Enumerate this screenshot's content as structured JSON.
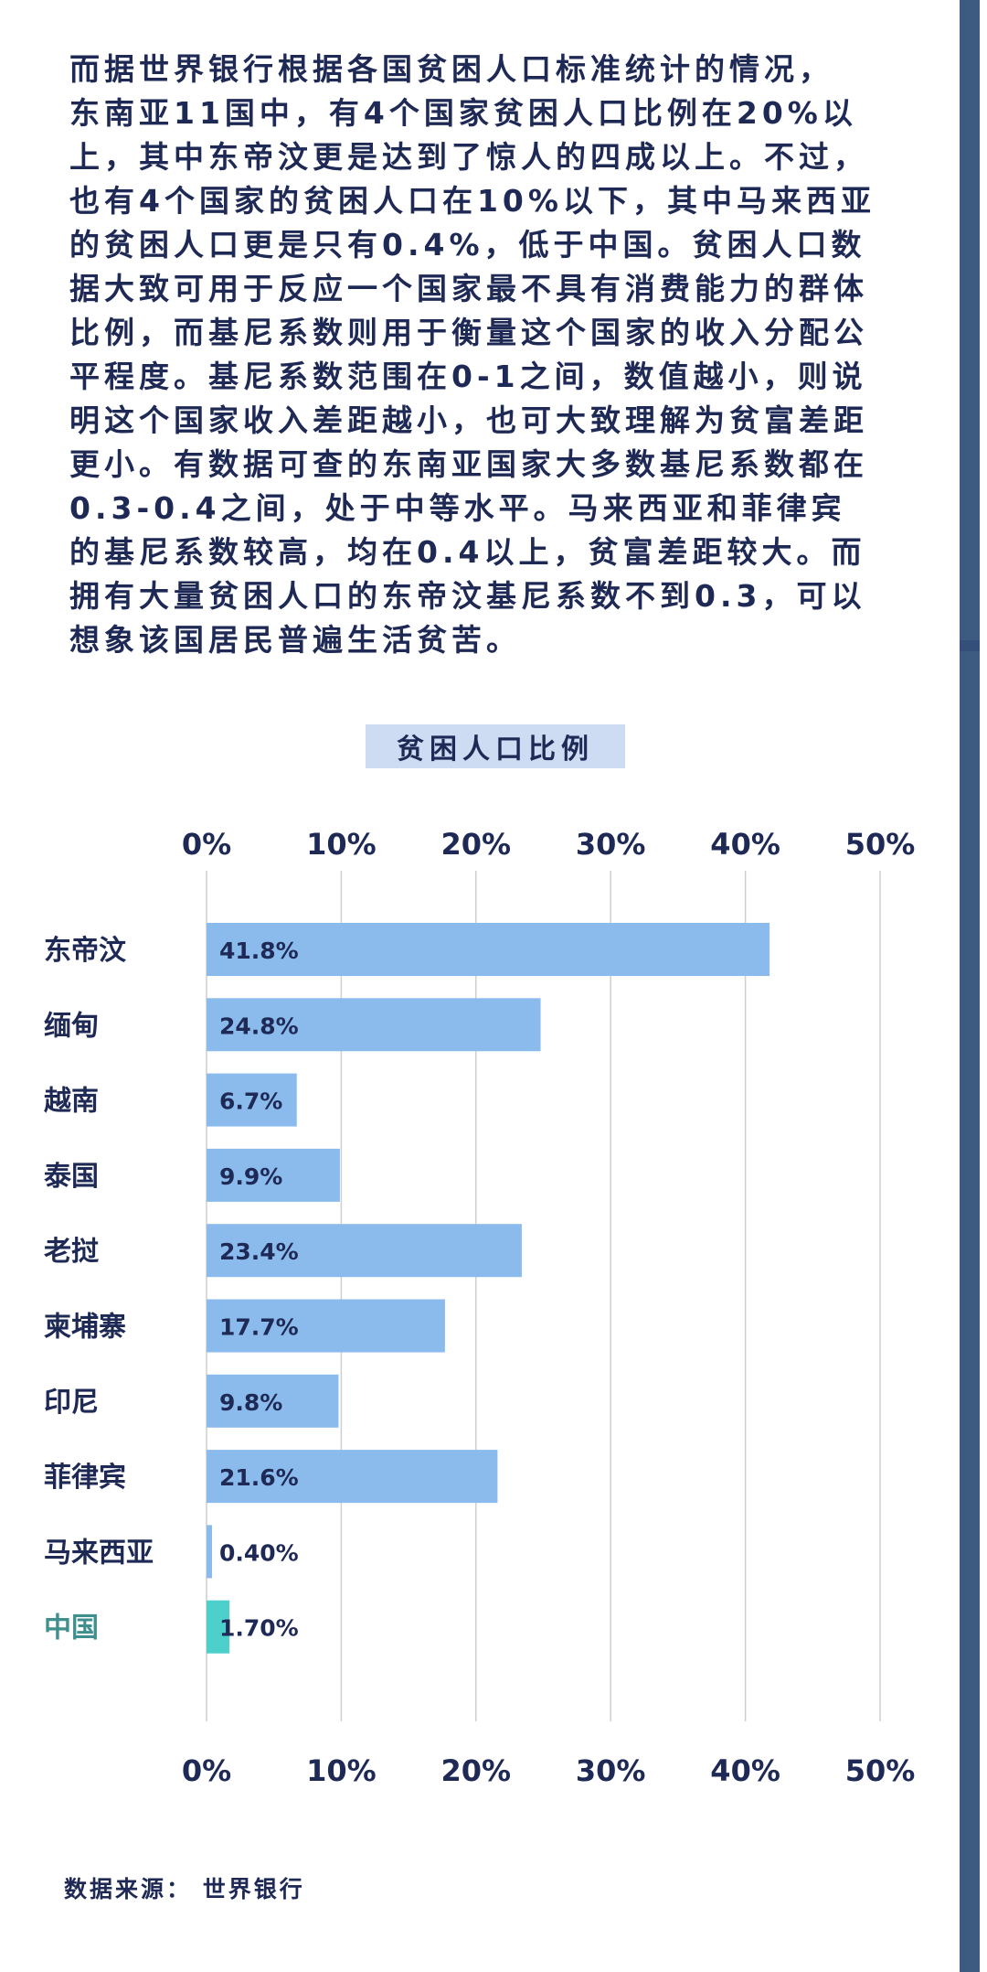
{
  "paragraph_lines": [
    "而据世界银行根据各国贫困人口标准统计的情况，",
    "东南亚11国中，有4个国家贫困人口比例在20%以",
    "上，其中东帝汶更是达到了惊人的四成以上。不过，",
    "也有4个国家的贫困人口在10%以下，其中马来西亚",
    "的贫困人口更是只有0.4%，低于中国。贫困人口数",
    "据大致可用于反应一个国家最不具有消费能力的群体",
    "比例，而基尼系数则用于衡量这个国家的收入分配公",
    "平程度。基尼系数范围在0-1之间，数值越小，则说",
    "明这个国家收入差距越小，也可大致理解为贫富差距",
    "更小。有数据可查的东南亚国家大多数基尼系数都在",
    "0.3-0.4之间，处于中等水平。马来西亚和菲律宾",
    "的基尼系数较高，均在0.4以上，贫富差距较大。而",
    "拥有大量贫困人口的东帝汶基尼系数不到0.3，可以",
    "想象该国居民普遍生活贫苦。"
  ],
  "source_text": "数据来源： 世界银行",
  "colors": {
    "bar": "#8bbbec",
    "highlight_bar": "#4dcfcc",
    "highlight_label": "#3e8f8d",
    "text": "#1e2a55",
    "grid": "#cfcfcf"
  },
  "chart_data": {
    "type": "bar",
    "orientation": "horizontal",
    "title": "贫困人口比例",
    "categories": [
      "东帝汶",
      "缅甸",
      "越南",
      "泰国",
      "老挝",
      "柬埔寨",
      "印尼",
      "菲律宾",
      "马来西亚",
      "中国"
    ],
    "values": [
      41.8,
      24.8,
      6.7,
      9.9,
      23.4,
      17.7,
      9.8,
      21.6,
      0.4,
      1.7
    ],
    "value_labels": [
      "41.8%",
      "24.8%",
      "6.7%",
      "9.9%",
      "23.4%",
      "17.7%",
      "9.8%",
      "21.6%",
      "0.40%",
      "1.70%"
    ],
    "highlight": [
      "中国"
    ],
    "xlim": [
      0,
      50
    ],
    "xticks": [
      "0%",
      "10%",
      "20%",
      "30%",
      "40%",
      "50%"
    ],
    "tick_positions": "top-and-bottom",
    "grid": true
  }
}
